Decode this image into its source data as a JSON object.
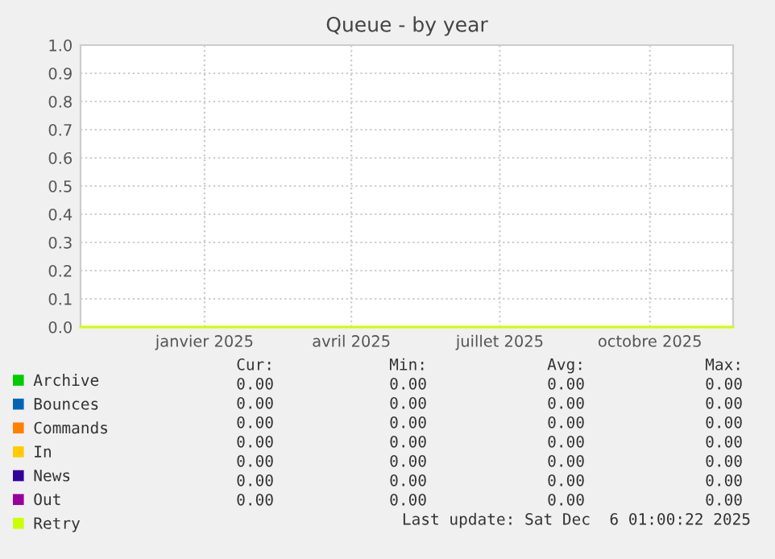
{
  "chart_data": {
    "type": "line",
    "title": "Queue - by year",
    "x": [
      "2024-11-01",
      "2025-12-06"
    ],
    "xlim": [
      "2024-11-01",
      "2025-12-06"
    ],
    "xticks": [
      {
        "value": "2025-01-16",
        "label": "janvier 2025"
      },
      {
        "value": "2025-04-16",
        "label": "avril 2025"
      },
      {
        "value": "2025-07-16",
        "label": "juillet 2025"
      },
      {
        "value": "2025-10-16",
        "label": "octobre 2025"
      }
    ],
    "ylim": [
      0,
      1
    ],
    "yticks": [
      {
        "value": 0,
        "label": "0.0"
      },
      {
        "value": 0.1,
        "label": "0.1"
      },
      {
        "value": 0.2,
        "label": "0.2"
      },
      {
        "value": 0.3,
        "label": "0.3"
      },
      {
        "value": 0.4,
        "label": "0.4"
      },
      {
        "value": 0.5,
        "label": "0.5"
      },
      {
        "value": 0.6,
        "label": "0.6"
      },
      {
        "value": 0.7,
        "label": "0.7"
      },
      {
        "value": 0.8,
        "label": "0.8"
      },
      {
        "value": 0.9,
        "label": "0.9"
      },
      {
        "value": 1,
        "label": "1.0"
      }
    ],
    "grid": true,
    "legend": "bottom",
    "series": [
      {
        "name": "Archive",
        "color": "#00cc00",
        "values": [
          null,
          null
        ]
      },
      {
        "name": "Bounces",
        "color": "#0066b3",
        "values": [
          null,
          null
        ]
      },
      {
        "name": "Commands",
        "color": "#ff8000",
        "values": [
          null,
          null
        ]
      },
      {
        "name": "In",
        "color": "#ffcc00",
        "values": [
          null,
          null
        ]
      },
      {
        "name": "News",
        "color": "#330099",
        "values": [
          null,
          null
        ]
      },
      {
        "name": "Out",
        "color": "#990099",
        "values": [
          null,
          null
        ]
      },
      {
        "name": "Retry",
        "color": "#ccff00",
        "values": [
          0,
          0
        ]
      }
    ],
    "annotations": [
      "Cur:",
      "Min:",
      "Avg:",
      "Max:",
      "0.00",
      "0.00",
      "0.00",
      "0.00",
      "0.00",
      "0.00",
      "0.00",
      "0.00",
      "0.00",
      "0.00",
      "0.00",
      "0.00",
      "0.00",
      "0.00",
      "0.00",
      "0.00",
      "0.00",
      "0.00",
      "0.00",
      "0.00",
      "0.00",
      "0.00",
      "0.00",
      "0.00",
      "0.00",
      "0.00",
      "0.00",
      "0.00",
      "Last update: Sat Dec  6 01:00:22 2025"
    ]
  }
}
